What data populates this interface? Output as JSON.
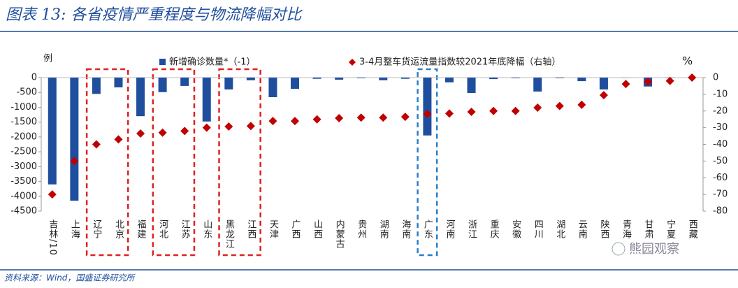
{
  "chart_data": {
    "type": "bar",
    "title": "图表 13:  各省疫情严重程度与物流降幅对比",
    "y_label": "例",
    "y2_label": "%",
    "source": "资料来源：Wind，国盛证券研究所",
    "watermark": "熊园观察",
    "categories": [
      "吉林/10",
      "上海",
      "辽宁",
      "北京",
      "福建",
      "河北",
      "江苏",
      "山东",
      "黑龙江",
      "江西",
      "天津",
      "广西",
      "山西",
      "内蒙古",
      "贵州",
      "湖南",
      "海南",
      "广东",
      "河南",
      "浙江",
      "重庆",
      "安徽",
      "四川",
      "湖北",
      "云南",
      "陕西",
      "青海",
      "甘肃",
      "宁夏",
      "西藏"
    ],
    "series": [
      {
        "name": "新增确诊数量*（-1）",
        "type": "bar",
        "color": "#1f4e9e",
        "values": [
          -3600,
          -4150,
          -550,
          -330,
          -1300,
          -490,
          -280,
          -1480,
          -400,
          -90,
          -660,
          -380,
          -40,
          -70,
          -20,
          -90,
          -40,
          -1950,
          -160,
          -520,
          -50,
          -20,
          -470,
          -20,
          -120,
          -400,
          -5,
          -300,
          -10,
          0
        ]
      },
      {
        "name": "3-4月整车货运流量指数较2021年底降幅（右轴）",
        "type": "scatter",
        "axis": "y2",
        "color": "#c00000",
        "values": [
          -70,
          -50,
          -40,
          -37,
          -33.5,
          -33,
          -32,
          -30,
          -29.3,
          -29,
          -26,
          -26,
          -25,
          -24.3,
          -24,
          -24,
          -23.5,
          -21.8,
          -21.5,
          -20.5,
          -20,
          -20,
          -18,
          -17,
          -16.3,
          -10.5,
          -3.8,
          -2.5,
          -2,
          0
        ]
      }
    ],
    "ylim": [
      0,
      -4500
    ],
    "yticks": [
      0,
      -500,
      -1000,
      -1500,
      -2000,
      -2500,
      -3000,
      -3500,
      -4000,
      -4500
    ],
    "y2lim": [
      0,
      -80
    ],
    "y2ticks": [
      0,
      -10,
      -20,
      -30,
      -40,
      -50,
      -60,
      -70,
      -80
    ],
    "grid": false
  }
}
